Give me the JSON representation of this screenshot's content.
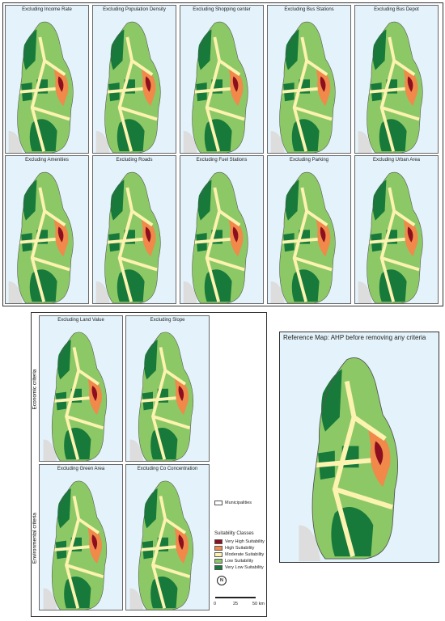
{
  "panels": [
    "Excluding Income Rate",
    "Excluding Population Density",
    "Excluding Shopping center",
    "Excluding Bus Stations",
    "Excluding Bus Depot",
    "Excluding Amenities",
    "Excluding Roads",
    "Excluding Fuel Stations",
    "Excluding Parking",
    "Excluding Urban Area"
  ],
  "economic_panels": [
    "Excluding Land Value",
    "Excluding Slope"
  ],
  "environmental_panels": [
    "Excluding Green Area",
    "Excluding Co Concentration"
  ],
  "side_labels": [
    "Economic criteria",
    "Environmental criteria"
  ],
  "reference_map": {
    "title": "Reference Map: AHP before removing any criteria"
  },
  "legend": {
    "municipalities": "Municipalities",
    "title": "Suitability Classes",
    "classes": [
      {
        "label": "Very High Suitability",
        "color": "#8b0f1f"
      },
      {
        "label": "High Suitability",
        "color": "#f0894a"
      },
      {
        "label": "Moderate Suitability",
        "color": "#fdf3b0"
      },
      {
        "label": "Low Suitability",
        "color": "#8dc866"
      },
      {
        "label": "Very Low Suitability",
        "color": "#177a3b"
      }
    ]
  },
  "north": "N",
  "scale": [
    "0",
    "25",
    "50 km"
  ]
}
